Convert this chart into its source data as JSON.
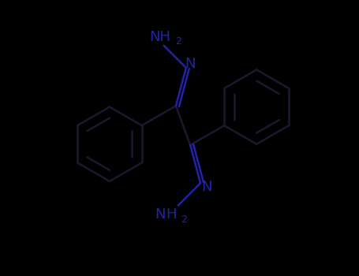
{
  "bg_color": "#000000",
  "bond_color": "#111122",
  "nitrogen_color": "#2222aa",
  "lw": 1.8,
  "font_size": 13,
  "sub_font_size": 9,
  "fig_width": 4.55,
  "fig_height": 3.5,
  "dpi": 100,
  "xlim": [
    -2.5,
    2.5
  ],
  "ylim": [
    -1.9,
    1.9
  ],
  "hex_r": 0.52
}
